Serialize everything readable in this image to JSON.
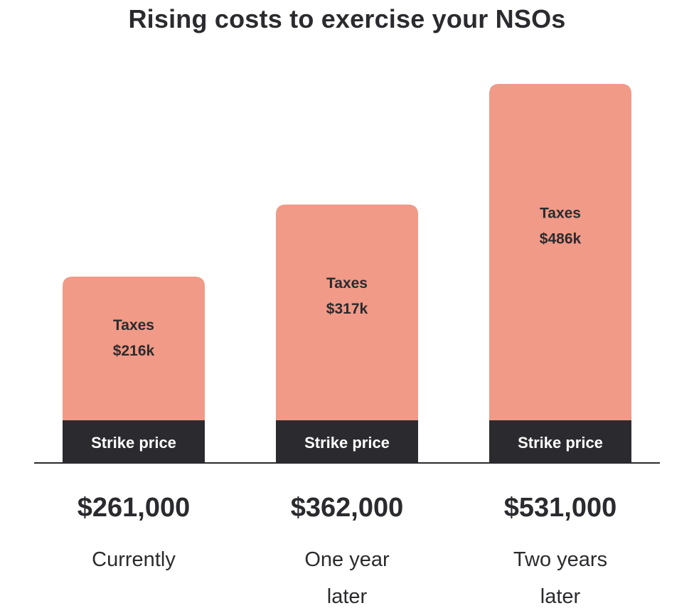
{
  "chart_data": {
    "type": "bar",
    "title": "Rising costs to exercise your NSOs",
    "categories": [
      "Currently",
      "One year later",
      "Two years later"
    ],
    "totals": [
      "$261,000",
      "$362,000",
      "$531,000"
    ],
    "total_values": [
      261000,
      362000,
      531000
    ],
    "series": [
      {
        "name": "Strike price",
        "values": [
          45000,
          45000,
          45000
        ]
      },
      {
        "name": "Taxes",
        "values": [
          216000,
          317000,
          486000
        ],
        "labels": [
          "$216k",
          "$317k",
          "$486k"
        ]
      }
    ],
    "ylim": [
      0,
      531000
    ],
    "grid": false,
    "colors": {
      "taxes": "#f09a87",
      "strike_price": "#2b2b2f",
      "axis": "#2b2b2f",
      "text": "#2b2b2f",
      "strike_label": "#ffffff"
    }
  }
}
